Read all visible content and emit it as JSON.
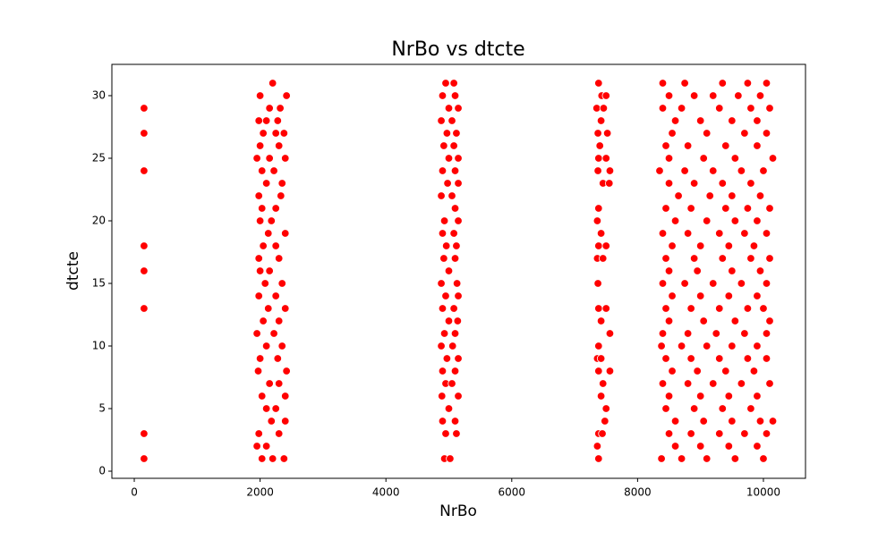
{
  "chart_data": {
    "type": "scatter",
    "title": "NrBo vs dtcte",
    "x_label": "NrBo",
    "y_label": "dtcte",
    "color": "#ff0000",
    "x": [
      155,
      155,
      155,
      155,
      155,
      155,
      155,
      155,
      2200,
      2000,
      2420,
      2150,
      2320,
      1980,
      2100,
      2280,
      2250,
      2050,
      2380,
      2000,
      2300,
      2150,
      2400,
      1950,
      2220,
      2030,
      2100,
      2350,
      1980,
      2330,
      2030,
      2250,
      2000,
      2180,
      2130,
      2400,
      2250,
      2050,
      1980,
      2300,
      2000,
      2150,
      2080,
      2350,
      1980,
      2250,
      2130,
      2400,
      2050,
      2300,
      1950,
      2220,
      2100,
      2350,
      2000,
      2280,
      1970,
      2420,
      2150,
      2300,
      2030,
      2400,
      2100,
      2250,
      2180,
      2400,
      1980,
      2300,
      1950,
      2100,
      2030,
      2200,
      2380,
      4950,
      5080,
      4900,
      5100,
      5000,
      5150,
      4880,
      5050,
      4970,
      5120,
      4920,
      5080,
      5000,
      5150,
      4900,
      5100,
      4980,
      5150,
      4880,
      5050,
      5100,
      4930,
      5150,
      4900,
      5080,
      4960,
      5120,
      4920,
      5100,
      5000,
      4880,
      5130,
      4950,
      5150,
      4900,
      5080,
      5000,
      5140,
      4930,
      5100,
      4880,
      5060,
      4970,
      5150,
      4900,
      5100,
      4950,
      5050,
      4890,
      5150,
      5000,
      4900,
      5100,
      4950,
      5120,
      4930,
      5020,
      7380,
      7430,
      7500,
      7350,
      7460,
      7420,
      7370,
      7520,
      7400,
      7380,
      7500,
      7370,
      7560,
      7450,
      7550,
      7380,
      7360,
      7420,
      7380,
      7500,
      7360,
      7450,
      7370,
      7380,
      7500,
      7420,
      7560,
      7380,
      7360,
      7420,
      7380,
      7560,
      7450,
      7420,
      7500,
      7480,
      7380,
      7440,
      7360,
      7380,
      8400,
      8750,
      9350,
      9750,
      10050,
      8500,
      8900,
      9200,
      9600,
      9950,
      8400,
      8700,
      9300,
      9800,
      10100,
      8600,
      9000,
      9500,
      9900,
      8550,
      9100,
      9700,
      10050,
      8450,
      8800,
      9400,
      9900,
      8500,
      9050,
      9550,
      10150,
      8350,
      8750,
      9200,
      9650,
      10000,
      8500,
      8900,
      9350,
      9800,
      8650,
      9150,
      9500,
      9950,
      8450,
      8850,
      9400,
      9750,
      10100,
      8600,
      9100,
      9550,
      9900,
      8400,
      8800,
      9300,
      9700,
      10050,
      8550,
      9000,
      9450,
      9850,
      8450,
      8900,
      9350,
      9800,
      10100,
      8500,
      8950,
      9500,
      9950,
      8400,
      8750,
      9200,
      9650,
      10050,
      8550,
      9000,
      9450,
      9900,
      8450,
      8850,
      9300,
      9750,
      10000,
      8500,
      9050,
      9550,
      10100,
      8400,
      8800,
      9250,
      9700,
      10050,
      8380,
      8700,
      9100,
      9500,
      9900,
      8450,
      8850,
      9300,
      9750,
      10050,
      8550,
      8950,
      9400,
      9850,
      8400,
      8800,
      9200,
      9650,
      10100,
      8500,
      9000,
      9450,
      9900,
      8450,
      8900,
      9350,
      9800,
      8600,
      9050,
      9500,
      9950,
      10150,
      8500,
      8850,
      9300,
      9700,
      10050,
      8600,
      9000,
      9450,
      9900,
      8380,
      8700,
      9100,
      9550,
      10000
    ],
    "values": [
      29,
      27,
      24,
      18,
      16,
      13,
      3,
      1,
      31,
      30,
      30,
      29,
      29,
      28,
      28,
      28,
      27,
      27,
      27,
      26,
      26,
      25,
      25,
      25,
      24,
      24,
      23,
      23,
      22,
      22,
      21,
      21,
      20,
      20,
      19,
      19,
      18,
      18,
      17,
      17,
      16,
      16,
      15,
      15,
      14,
      14,
      13,
      13,
      12,
      12,
      11,
      11,
      10,
      10,
      9,
      9,
      8,
      8,
      7,
      7,
      6,
      6,
      5,
      5,
      4,
      4,
      3,
      3,
      2,
      2,
      1,
      1,
      1,
      31,
      31,
      30,
      30,
      29,
      29,
      28,
      28,
      27,
      27,
      26,
      26,
      25,
      25,
      24,
      24,
      23,
      23,
      22,
      22,
      21,
      20,
      20,
      19,
      19,
      18,
      18,
      17,
      17,
      16,
      15,
      15,
      14,
      14,
      13,
      13,
      12,
      12,
      11,
      11,
      10,
      10,
      9,
      9,
      8,
      8,
      7,
      7,
      6,
      6,
      5,
      4,
      4,
      3,
      3,
      1,
      1,
      31,
      30,
      30,
      29,
      29,
      28,
      27,
      27,
      26,
      25,
      25,
      24,
      24,
      23,
      23,
      21,
      20,
      19,
      18,
      18,
      17,
      17,
      15,
      13,
      13,
      12,
      11,
      10,
      9,
      9,
      8,
      8,
      7,
      6,
      5,
      4,
      3,
      3,
      2,
      1,
      31,
      31,
      31,
      31,
      31,
      30,
      30,
      30,
      30,
      30,
      29,
      29,
      29,
      29,
      29,
      28,
      28,
      28,
      28,
      27,
      27,
      27,
      27,
      26,
      26,
      26,
      26,
      25,
      25,
      25,
      25,
      24,
      24,
      24,
      24,
      24,
      23,
      23,
      23,
      23,
      22,
      22,
      22,
      22,
      21,
      21,
      21,
      21,
      21,
      20,
      20,
      20,
      20,
      19,
      19,
      19,
      19,
      19,
      18,
      18,
      18,
      18,
      17,
      17,
      17,
      17,
      17,
      16,
      16,
      16,
      16,
      15,
      15,
      15,
      15,
      15,
      14,
      14,
      14,
      14,
      13,
      13,
      13,
      13,
      13,
      12,
      12,
      12,
      12,
      11,
      11,
      11,
      11,
      11,
      10,
      10,
      10,
      10,
      10,
      9,
      9,
      9,
      9,
      9,
      8,
      8,
      8,
      8,
      7,
      7,
      7,
      7,
      7,
      6,
      6,
      6,
      6,
      5,
      5,
      5,
      5,
      4,
      4,
      4,
      4,
      4,
      3,
      3,
      3,
      3,
      3,
      2,
      2,
      2,
      2,
      1,
      1,
      1,
      1,
      1
    ],
    "xlim": [
      -356,
      10669
    ],
    "ylim": [
      -0.57,
      32.5
    ],
    "xticks": [
      0,
      2000,
      4000,
      6000,
      8000,
      10000
    ],
    "yticks": [
      0,
      5,
      10,
      15,
      20,
      25,
      30
    ]
  }
}
